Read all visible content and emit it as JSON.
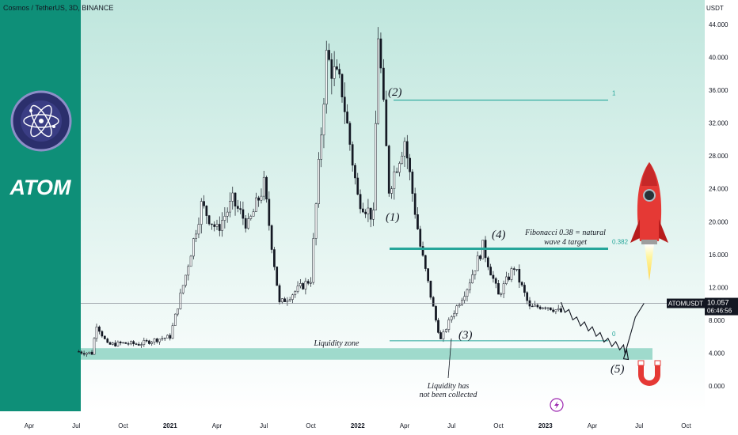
{
  "header": {
    "symbol_title": "Cosmos / TetherUS, 3D, BINANCE",
    "currency": "USDT"
  },
  "brand": {
    "name": "ATOM",
    "panel_color": "#0e8f78",
    "logo_icon": "cosmos-atom-icon"
  },
  "colors": {
    "up": "#26a69a",
    "down": "#ef5350",
    "candle": "#131722",
    "zone": "#8fd3c3",
    "bg_top": "#bfe6dd",
    "bg_bottom": "#ffffff"
  },
  "price_tag": {
    "symbol": "ATOMUSDT",
    "price": "10.057",
    "countdown": "06:46:56"
  },
  "annotations": {
    "liquidity_zone": "Liquidity zone",
    "liquidity_note_line1": "Liquidity has",
    "liquidity_note_line2": "not been collected",
    "fib_note_line1": "Fibonacci 0.38 = natural",
    "fib_note_line2": "wave 4 target",
    "wave_1": "(1)",
    "wave_2": "(2)",
    "wave_3": "(3)",
    "wave_4": "(4)",
    "wave_5": "(5)",
    "fib_1": "1",
    "fib_0382": "0.382",
    "fib_0": "0",
    "rocket_icon": "rocket-icon",
    "magnet_icon": "magnet-icon",
    "flash_icon": "lightning-icon"
  },
  "chart_data": {
    "type": "candlestick",
    "title": "Cosmos / TetherUS, 3D, BINANCE",
    "ylabel": "USDT",
    "ylim": [
      -3,
      46
    ],
    "y_ticks": [
      "44.000",
      "40.000",
      "36.000",
      "32.000",
      "28.000",
      "24.000",
      "20.000",
      "16.000",
      "12.000",
      "8.000",
      "4.000",
      "0.000"
    ],
    "x_ticks": [
      "Apr",
      "Jul",
      "Oct",
      "2021",
      "Apr",
      "Jul",
      "Oct",
      "2022",
      "Apr",
      "Jul",
      "Oct",
      "2023",
      "Apr",
      "Jul",
      "Oct"
    ],
    "x_range": [
      "2020-04",
      "2023-10"
    ],
    "fib_levels": [
      {
        "label": "1",
        "value": 34.8
      },
      {
        "label": "0.382",
        "value": 16.7
      },
      {
        "label": "0",
        "value": 5.5
      }
    ],
    "liquidity_zone": [
      3.2,
      4.6
    ],
    "last_price": 10.057,
    "waves": [
      {
        "label": "(1)",
        "date": "2022-03",
        "value": 21
      },
      {
        "label": "(2)",
        "date": "2022-03",
        "value": 34.8
      },
      {
        "label": "(3)",
        "date": "2022-06",
        "value": 5.6
      },
      {
        "label": "(4)",
        "date": "2022-09",
        "value": 17.3
      },
      {
        "label": "(5)",
        "date": "2023-06",
        "value": 3.5
      }
    ],
    "price_path": [
      [
        "2020-07",
        4.2
      ],
      [
        "2020-08",
        4.0
      ],
      [
        "2020-08",
        7.5
      ],
      [
        "2020-09",
        5.0
      ],
      [
        "2020-10",
        5.2
      ],
      [
        "2020-11",
        5.1
      ],
      [
        "2020-12",
        5.6
      ],
      [
        "2021-01",
        6.0
      ],
      [
        "2021-02",
        13.5
      ],
      [
        "2021-03",
        22.0
      ],
      [
        "2021-04",
        19.0
      ],
      [
        "2021-05",
        22.5
      ],
      [
        "2021-06",
        19.5
      ],
      [
        "2021-07",
        24.5
      ],
      [
        "2021-08",
        10.0
      ],
      [
        "2021-09",
        11.5
      ],
      [
        "2021-10",
        13.0
      ],
      [
        "2021-11",
        40.0
      ],
      [
        "2021-12",
        36.0
      ],
      [
        "2022-01",
        23.0
      ],
      [
        "2022-02",
        20.5
      ],
      [
        "2022-02",
        43.0
      ],
      [
        "2022-03",
        24.0
      ],
      [
        "2022-04",
        30.0
      ],
      [
        "2022-05",
        17.0
      ],
      [
        "2022-06",
        8.0
      ],
      [
        "2022-06",
        5.6
      ],
      [
        "2022-07",
        8.5
      ],
      [
        "2022-08",
        12.0
      ],
      [
        "2022-09",
        17.0
      ],
      [
        "2022-10",
        11.0
      ],
      [
        "2022-11",
        14.5
      ],
      [
        "2022-12",
        9.5
      ],
      [
        "2023-01",
        9.8
      ],
      [
        "2023-02",
        9.0
      ]
    ],
    "projection_path": [
      [
        "2023-02",
        9.8
      ],
      [
        "2023-03",
        8.0
      ],
      [
        "2023-04",
        6.8
      ],
      [
        "2023-05",
        5.4
      ],
      [
        "2023-06",
        4.6
      ],
      [
        "2023-06",
        3.3
      ],
      [
        "2023-07",
        10.057
      ]
    ]
  }
}
